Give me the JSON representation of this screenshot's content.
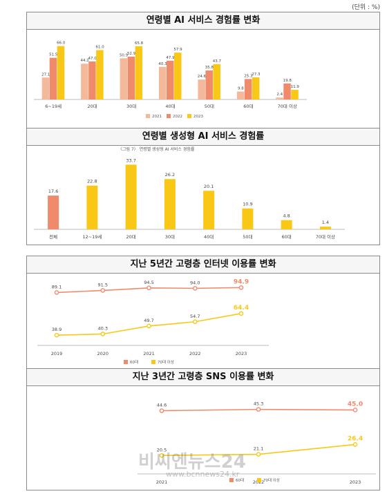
{
  "unit_note": "(단위 : %)",
  "charts": [
    {
      "type": "bar",
      "title": "연령별 AI 서비스 경험률 변화",
      "categories": [
        "6~19세",
        "20대",
        "30대",
        "40대",
        "50대",
        "60대",
        "70대 이상"
      ],
      "series": [
        {
          "name": "2021",
          "color": "#f4b89a",
          "values": [
            27.1,
            44.2,
            50.9,
            40.3,
            24.6,
            9.8,
            2.4
          ]
        },
        {
          "name": "2022",
          "color": "#ef8a6a",
          "values": [
            51.5,
            47.0,
            52.9,
            47.9,
            35.8,
            25.3,
            19.8
          ]
        },
        {
          "name": "2023",
          "color": "#f9c715",
          "values": [
            66.0,
            61.0,
            65.8,
            57.9,
            43.7,
            27.3,
            11.9
          ]
        }
      ],
      "ylim": [
        0,
        70
      ],
      "legend": "bottom"
    },
    {
      "type": "bar",
      "title": "연령별 생성형 AI 서비스 경험률",
      "caption": "〈그림 7〉 연령별 생성형 AI 서비스 경험률",
      "categories": [
        "전체",
        "12~19세",
        "20대",
        "30대",
        "40대",
        "50대",
        "60대",
        "70대 이상"
      ],
      "values": [
        17.6,
        22.8,
        33.7,
        26.2,
        20.1,
        10.9,
        4.8,
        1.4
      ],
      "colors": [
        "#ef8a6a",
        "#f9c715",
        "#f9c715",
        "#f9c715",
        "#f9c715",
        "#f9c715",
        "#f9c715",
        "#f9c715"
      ],
      "ylim": [
        0,
        36
      ]
    },
    {
      "type": "line",
      "title": "지난 5년간 고령층 인터넷 이용률 변화",
      "x": [
        "2019",
        "2020",
        "2021",
        "2022",
        "2023"
      ],
      "series": [
        {
          "name": "60대",
          "color": "#ef8a6a",
          "values": [
            89.1,
            91.5,
            94.5,
            94.0,
            94.9
          ]
        },
        {
          "name": "70대 이상",
          "color": "#f9c715",
          "values": [
            38.9,
            40.3,
            49.7,
            54.7,
            64.4
          ]
        }
      ],
      "legend": "bottom"
    },
    {
      "type": "line",
      "title": "지난 3년간 고령층 SNS 이용률 변화",
      "x": [
        "2021",
        "2022",
        "2023"
      ],
      "series": [
        {
          "name": "60대",
          "color": "#ef8a6a",
          "values": [
            44.6,
            45.3,
            45.0
          ]
        },
        {
          "name": "70대 이상",
          "color": "#f9c715",
          "values": [
            20.5,
            21.1,
            26.4
          ]
        }
      ],
      "legend": "bottom"
    }
  ],
  "watermark": {
    "main": "비씨엔뉴스24",
    "sub": "www.bcnnews24.kr"
  }
}
